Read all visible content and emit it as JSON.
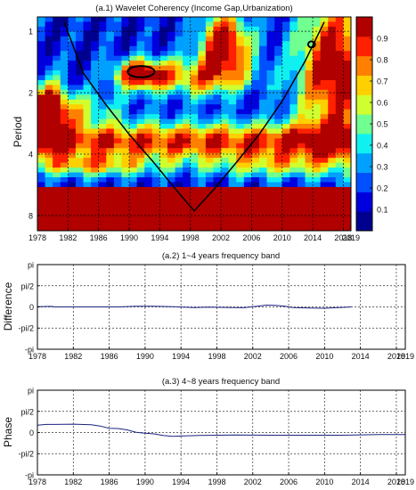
{
  "chart_data": [
    {
      "type": "heatmap",
      "title": "(a.1)  Wavelet Coherency (Income Gap,Urbanization)",
      "xlabel": "",
      "ylabel": "Period",
      "xlim": [
        1978,
        2019
      ],
      "ylim_log2": [
        0.85,
        9.5
      ],
      "x_ticks": [
        1978,
        1982,
        1986,
        1990,
        1994,
        1998,
        2002,
        2006,
        2010,
        2014,
        2018,
        2019
      ],
      "x_tick_labels": [
        "1978",
        "1982",
        "1986",
        "1990",
        "1994",
        "1998",
        "2002",
        "2006",
        "2010",
        "2014",
        "2018",
        "2019"
      ],
      "y_ticks": [
        1,
        2,
        4,
        8
      ],
      "y_tick_labels": [
        "1",
        "2",
        "4",
        "8"
      ],
      "colorbar": {
        "range": [
          0,
          1
        ],
        "ticks": [
          0.1,
          0.2,
          0.3,
          0.4,
          0.5,
          0.6,
          0.7,
          0.8,
          0.9
        ],
        "tick_labels": [
          "0.1",
          "0.2",
          "0.3",
          "0.4",
          "0.5",
          "0.6",
          "0.7",
          "0.8",
          "0.9"
        ],
        "colors": [
          "#00008f",
          "#0000df",
          "#0050ff",
          "#00a0ff",
          "#10f0f0",
          "#70ff90",
          "#d0ff30",
          "#ffd000",
          "#ff8000",
          "#ff2000",
          "#b00000"
        ]
      },
      "grid": true,
      "cone_of_influence": {
        "x": [
          1981.5,
          1984,
          1987,
          1990,
          1993,
          1996,
          1998.5,
          2001,
          2004,
          2007,
          2010,
          2013,
          2015.5
        ],
        "period": [
          0.9,
          1.6,
          2.3,
          3.2,
          4.3,
          5.9,
          7.6,
          6.0,
          4.4,
          3.2,
          2.2,
          1.4,
          0.9
        ]
      },
      "significance_contours": [
        {
          "x_range": [
            1989.8,
            1993.3
          ],
          "period_range": [
            1.48,
            1.68
          ]
        },
        {
          "x_range": [
            2013.4,
            2014.3
          ],
          "period_range": [
            1.12,
            1.2
          ]
        }
      ]
    },
    {
      "type": "line",
      "title": "(a.2)  1~4 years frequency band",
      "xlabel": "",
      "ylabel": "Difference",
      "xlim": [
        1978,
        2019
      ],
      "ylim": [
        -3.1416,
        3.1416
      ],
      "x_ticks": [
        1978,
        1982,
        1986,
        1990,
        1994,
        1998,
        2002,
        2006,
        2010,
        2014,
        2018,
        2019
      ],
      "x_tick_labels": [
        "1978",
        "1982",
        "1986",
        "1990",
        "1994",
        "1998",
        "2002",
        "2006",
        "2010",
        "2014",
        "2018",
        "2019"
      ],
      "y_tick_labels": [
        "pi",
        "pi/2",
        "0",
        "-pi/2",
        "-pi"
      ],
      "grid": true,
      "series": [
        {
          "x": [
            1978,
            1979.5,
            1980,
            1987,
            1989,
            1991,
            1993,
            1995.5,
            1997,
            2001,
            2002.5,
            2003.5,
            2004.5,
            2005.5,
            2006.5,
            2008.5,
            2010,
            2011.5,
            2013
          ],
          "y": [
            0.02,
            0.04,
            0.0,
            0.0,
            0.05,
            0.05,
            0.02,
            -0.05,
            -0.02,
            -0.06,
            0.05,
            0.13,
            0.12,
            0.06,
            -0.05,
            -0.08,
            -0.1,
            -0.05,
            0.0
          ]
        }
      ]
    },
    {
      "type": "line",
      "title": "(a.3)  4~8 years frequency band",
      "xlabel": "",
      "ylabel": "Phase",
      "xlim": [
        1978,
        2019
      ],
      "ylim": [
        -3.1416,
        3.1416
      ],
      "x_ticks": [
        1978,
        1982,
        1986,
        1990,
        1994,
        1998,
        2002,
        2006,
        2010,
        2014,
        2018,
        2019
      ],
      "x_tick_labels": [
        "1978",
        "1982",
        "1986",
        "1990",
        "1994",
        "1998",
        "2002",
        "2006",
        "2010",
        "2014",
        "2018",
        "2019"
      ],
      "y_tick_labels": [
        "pi",
        "pi/2",
        "0",
        "-pi/2",
        "-pi"
      ],
      "grid": true,
      "series": [
        {
          "x": [
            1978,
            1979,
            1980,
            1982,
            1984,
            1985,
            1986,
            1987,
            1988,
            1989,
            1990,
            1991,
            1992,
            1993,
            1996,
            2000,
            2004,
            2008,
            2012,
            2016,
            2019
          ],
          "y": [
            0.55,
            0.6,
            0.6,
            0.62,
            0.58,
            0.48,
            0.32,
            0.3,
            0.2,
            0.02,
            -0.05,
            -0.1,
            -0.22,
            -0.28,
            -0.22,
            -0.18,
            -0.2,
            -0.2,
            -0.2,
            -0.15,
            -0.15
          ]
        }
      ]
    }
  ]
}
